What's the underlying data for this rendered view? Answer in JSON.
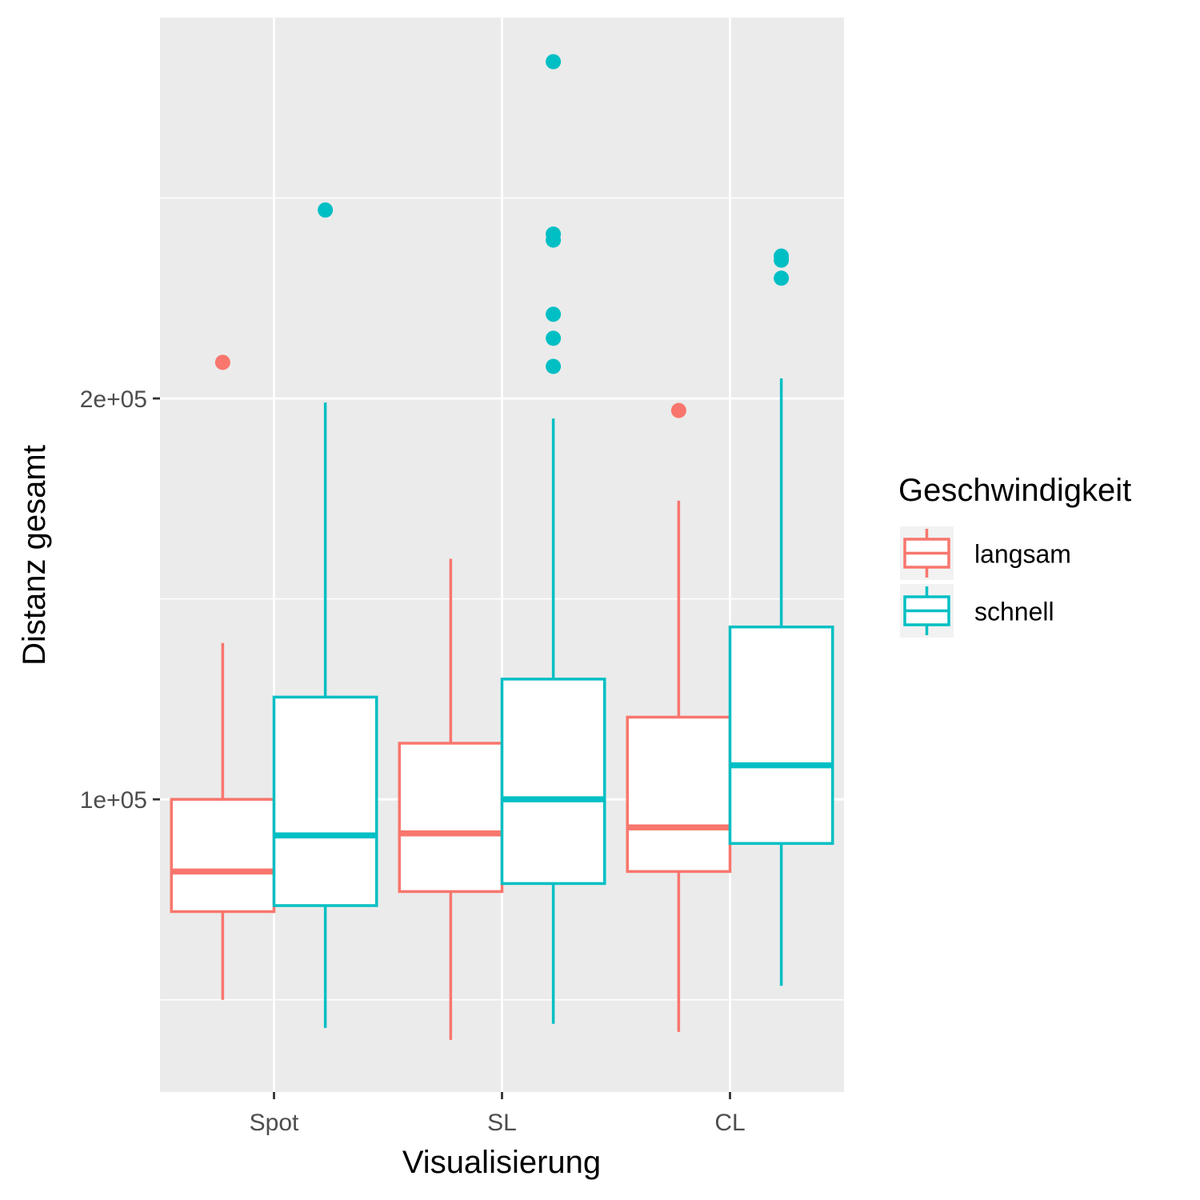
{
  "chart_data": {
    "type": "boxplot",
    "xlabel": "Visualisierung",
    "ylabel": "Distanz gesamt",
    "categories": [
      "Spot",
      "SL",
      "CL"
    ],
    "y_ticks": [
      {
        "value": 100000,
        "label": "1e+05"
      },
      {
        "value": 200000,
        "label": "2e+05"
      }
    ],
    "ylim": [
      27000,
      295000
    ],
    "grid": true,
    "legend": {
      "title": "Geschwindigkeit",
      "position": "right"
    },
    "series": [
      {
        "name": "langsam",
        "color": "#F8766D",
        "boxes": [
          {
            "category": "Spot",
            "whisker_low": 50000,
            "q1": 72000,
            "median": 82000,
            "q3": 100000,
            "whisker_high": 139000,
            "outliers": [
              209000
            ]
          },
          {
            "category": "SL",
            "whisker_low": 40000,
            "q1": 77000,
            "median": 91500,
            "q3": 114000,
            "whisker_high": 160000,
            "outliers": []
          },
          {
            "category": "CL",
            "whisker_low": 42000,
            "q1": 82000,
            "median": 93000,
            "q3": 120500,
            "whisker_high": 174500,
            "outliers": [
              197000
            ]
          }
        ]
      },
      {
        "name": "schnell",
        "color": "#00BFC4",
        "boxes": [
          {
            "category": "Spot",
            "whisker_low": 43000,
            "q1": 73500,
            "median": 91000,
            "q3": 125500,
            "whisker_high": 199000,
            "outliers": [
              247000
            ]
          },
          {
            "category": "SL",
            "whisker_low": 44000,
            "q1": 79000,
            "median": 100000,
            "q3": 130000,
            "whisker_high": 195000,
            "outliers": [
              284000,
              241000,
              239500,
              221000,
              215000,
              208000
            ]
          },
          {
            "category": "CL",
            "whisker_low": 53500,
            "q1": 89000,
            "median": 108500,
            "q3": 143000,
            "whisker_high": 205000,
            "outliers": [
              235500,
              234500,
              230000
            ]
          }
        ]
      }
    ]
  }
}
